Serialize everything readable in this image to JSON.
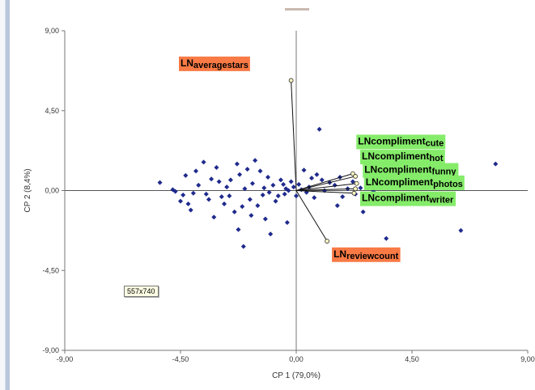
{
  "chart_data": {
    "type": "scatter",
    "title": "",
    "xlabel": "CP 1 (79,0%)",
    "ylabel": "CP 2 (8,4%)",
    "xlim": [
      -9,
      9
    ],
    "ylim": [
      -9,
      9
    ],
    "x_ticks": [
      "-9,00",
      "-4,50",
      "0,00",
      "4,50",
      "9,00"
    ],
    "y_ticks": [
      "9,00",
      "4,50",
      "0,00",
      "-4,50",
      "-9,00"
    ],
    "grid": false,
    "legend": "none",
    "point_color": "#1f2a8c",
    "label_colors": {
      "orange": "#f97a45",
      "green": "#85ec6a"
    },
    "points": [
      {
        "x": -5.3,
        "y": 0.45
      },
      {
        "x": -4.8,
        "y": 0.05
      },
      {
        "x": -4.7,
        "y": -0.05
      },
      {
        "x": -4.5,
        "y": -0.6
      },
      {
        "x": -4.4,
        "y": -0.25
      },
      {
        "x": -4.3,
        "y": 0.85
      },
      {
        "x": -4.2,
        "y": -0.75
      },
      {
        "x": -4.1,
        "y": -1.1
      },
      {
        "x": -4.0,
        "y": -0.15
      },
      {
        "x": -3.9,
        "y": 1.1
      },
      {
        "x": -3.8,
        "y": 0.3
      },
      {
        "x": -3.6,
        "y": 1.6
      },
      {
        "x": -3.5,
        "y": -0.2
      },
      {
        "x": -3.4,
        "y": -0.5
      },
      {
        "x": -3.3,
        "y": 0.65
      },
      {
        "x": -3.2,
        "y": -1.5
      },
      {
        "x": -3.1,
        "y": 1.3
      },
      {
        "x": -3.0,
        "y": 0.5
      },
      {
        "x": -2.9,
        "y": -0.35
      },
      {
        "x": -2.8,
        "y": -0.75
      },
      {
        "x": -2.7,
        "y": 0.2
      },
      {
        "x": -2.6,
        "y": -0.3
      },
      {
        "x": -2.55,
        "y": 0.6
      },
      {
        "x": -2.4,
        "y": -1.2
      },
      {
        "x": -2.3,
        "y": 1.5
      },
      {
        "x": -2.25,
        "y": -2.2
      },
      {
        "x": -2.2,
        "y": 0.9
      },
      {
        "x": -2.1,
        "y": -0.9
      },
      {
        "x": -2.05,
        "y": -3.15
      },
      {
        "x": -2.0,
        "y": 0.1
      },
      {
        "x": -1.9,
        "y": 1.2
      },
      {
        "x": -1.8,
        "y": -0.5
      },
      {
        "x": -1.75,
        "y": -1.4
      },
      {
        "x": -1.7,
        "y": 0.4
      },
      {
        "x": -1.6,
        "y": 1.7
      },
      {
        "x": -1.5,
        "y": -0.85
      },
      {
        "x": -1.4,
        "y": 1.1
      },
      {
        "x": -1.3,
        "y": -0.25
      },
      {
        "x": -1.25,
        "y": 0.15
      },
      {
        "x": -1.2,
        "y": -1.6
      },
      {
        "x": -1.1,
        "y": 0.75
      },
      {
        "x": -1.05,
        "y": -0.1
      },
      {
        "x": -1.0,
        "y": -2.45
      },
      {
        "x": -0.9,
        "y": 0.3
      },
      {
        "x": -0.8,
        "y": -0.6
      },
      {
        "x": -0.7,
        "y": -0.3
      },
      {
        "x": -0.6,
        "y": 0.6
      },
      {
        "x": -0.5,
        "y": 0.35
      },
      {
        "x": -0.45,
        "y": -0.2
      },
      {
        "x": -0.4,
        "y": 0.1
      },
      {
        "x": -0.35,
        "y": -1.8
      },
      {
        "x": -0.3,
        "y": 0.0
      },
      {
        "x": -0.2,
        "y": 0.5
      },
      {
        "x": -0.1,
        "y": 0.2
      },
      {
        "x": 0.0,
        "y": -0.3
      },
      {
        "x": 0.1,
        "y": 0.35
      },
      {
        "x": 0.2,
        "y": 0.05
      },
      {
        "x": 0.3,
        "y": 1.15
      },
      {
        "x": 0.4,
        "y": -0.1
      },
      {
        "x": 0.5,
        "y": 0.2
      },
      {
        "x": 0.6,
        "y": 0.7
      },
      {
        "x": 0.7,
        "y": -0.4
      },
      {
        "x": 0.8,
        "y": 0.9
      },
      {
        "x": 0.9,
        "y": 3.45
      },
      {
        "x": 1.0,
        "y": 0.6
      },
      {
        "x": 1.1,
        "y": 0.0
      },
      {
        "x": 1.3,
        "y": 0.45
      },
      {
        "x": 1.5,
        "y": 0.3
      },
      {
        "x": 1.6,
        "y": -0.85
      },
      {
        "x": 1.7,
        "y": 0.75
      },
      {
        "x": 1.8,
        "y": -0.35
      },
      {
        "x": 2.0,
        "y": 0.1
      },
      {
        "x": 2.2,
        "y": 0.5
      },
      {
        "x": 2.3,
        "y": -0.2
      },
      {
        "x": 2.5,
        "y": 0.15
      },
      {
        "x": 2.6,
        "y": -1.2
      },
      {
        "x": 2.8,
        "y": 0.55
      },
      {
        "x": 3.0,
        "y": -0.05
      },
      {
        "x": 3.3,
        "y": 0.4
      },
      {
        "x": 3.5,
        "y": -2.7
      },
      {
        "x": 3.7,
        "y": 0.95
      },
      {
        "x": 4.0,
        "y": -0.5
      },
      {
        "x": 6.4,
        "y": -2.25
      },
      {
        "x": 7.75,
        "y": 1.5
      }
    ],
    "vectors": [
      {
        "label": "LNaveragestars",
        "label_main": "LN",
        "label_sub": "averagestars",
        "x": -0.2,
        "y": 6.2,
        "box": "orange",
        "label_at": [
          -4.5,
          7.0
        ]
      },
      {
        "label": "LNcomplimentcute",
        "label_main": "LNcompliment",
        "label_sub": "cute",
        "x": 2.2,
        "y": 0.95,
        "box": "green",
        "label_at": [
          2.4,
          2.6
        ]
      },
      {
        "label": "LNcomplimenthot",
        "label_main": "LNcompliment",
        "label_sub": "hot",
        "x": 2.3,
        "y": 0.8,
        "box": "green",
        "label_at": [
          2.55,
          1.75
        ]
      },
      {
        "label": "LNcomplimentfunny",
        "label_main": "LNcompliment",
        "label_sub": "funny",
        "x": 2.35,
        "y": 0.4,
        "box": "green",
        "label_at": [
          2.65,
          1.0
        ]
      },
      {
        "label": "LNcomplimentphotos",
        "label_main": "LNcompliment",
        "label_sub": "photos",
        "x": 2.3,
        "y": 0.1,
        "box": "green",
        "label_at": [
          2.7,
          0.3
        ]
      },
      {
        "label": "LNcomplimentwriter",
        "label_main": "LNcompliment",
        "label_sub": "writer",
        "x": 2.25,
        "y": -0.15,
        "box": "green",
        "label_at": [
          2.55,
          -0.6
        ]
      },
      {
        "label": "LNreviewcount",
        "label_main": "LN",
        "label_sub": "reviewcount",
        "x": 1.2,
        "y": -2.85,
        "box": "orange",
        "label_at": [
          1.45,
          -3.75
        ]
      }
    ]
  },
  "image_size_tag": "557x740"
}
